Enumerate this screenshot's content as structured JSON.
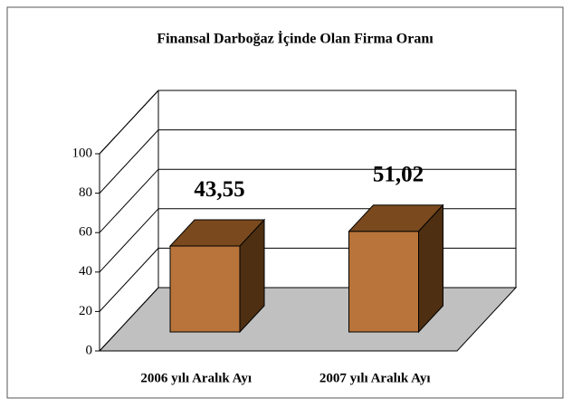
{
  "chart_data": {
    "type": "bar3d",
    "title": "Finansal Darboğaz İçinde Olan Firma Oranı",
    "categories": [
      "2006 yılı Aralık Ayı",
      "2007 yılı Aralık Ayı"
    ],
    "values": [
      43.55,
      51.02
    ],
    "value_labels": [
      "43,55",
      "51,02"
    ],
    "color": "#b8743a",
    "ylim": [
      0,
      100
    ],
    "yticks": [
      0,
      20,
      40,
      60,
      80,
      100
    ],
    "grid": true
  }
}
